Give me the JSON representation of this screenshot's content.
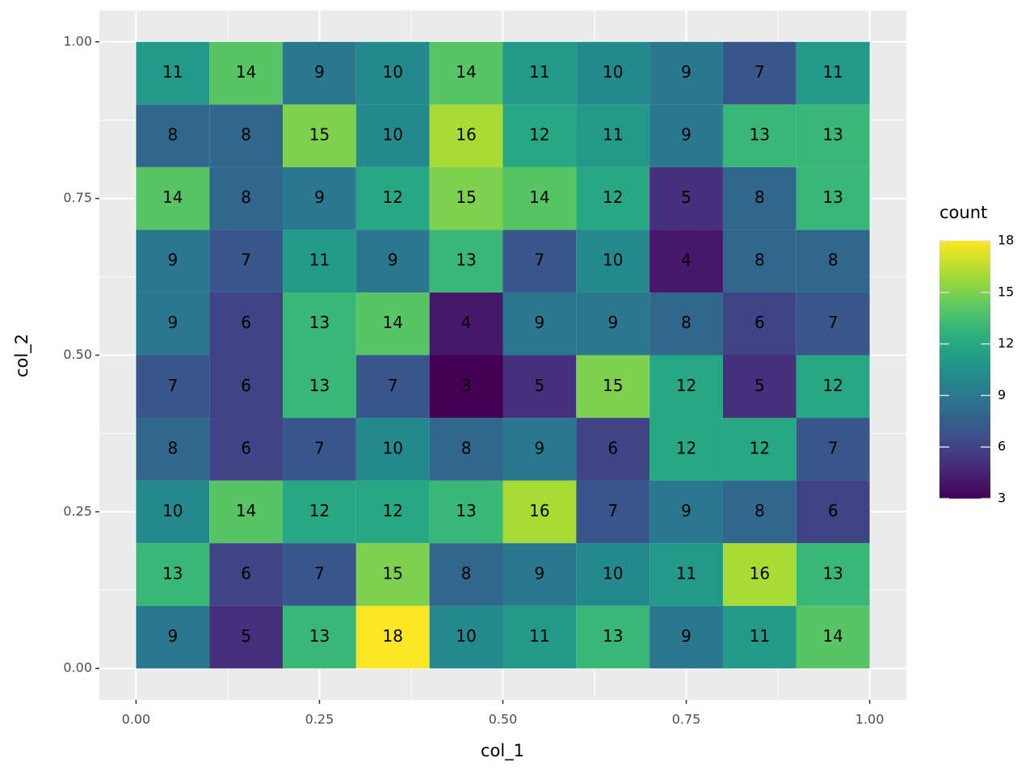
{
  "chart_data": {
    "type": "heatmap",
    "x_label": "col_1",
    "y_label": "col_2",
    "x_bins": [
      0,
      0.1,
      0.2,
      0.3,
      0.4,
      0.5,
      0.6,
      0.7,
      0.8,
      0.9,
      1.0
    ],
    "y_bins": [
      0,
      0.1,
      0.2,
      0.3,
      0.4,
      0.5,
      0.6,
      0.7,
      0.8,
      0.9,
      1.0
    ],
    "values": [
      [
        9,
        5,
        13,
        18,
        10,
        11,
        13,
        9,
        11,
        14
      ],
      [
        13,
        6,
        7,
        15,
        8,
        9,
        10,
        11,
        16,
        13
      ],
      [
        10,
        14,
        12,
        12,
        13,
        16,
        7,
        9,
        8,
        6
      ],
      [
        8,
        6,
        7,
        10,
        8,
        9,
        6,
        12,
        12,
        7
      ],
      [
        7,
        6,
        13,
        7,
        3,
        5,
        15,
        12,
        5,
        12
      ],
      [
        9,
        6,
        13,
        14,
        4,
        9,
        9,
        8,
        6,
        7
      ],
      [
        9,
        7,
        11,
        9,
        13,
        7,
        10,
        4,
        8,
        8
      ],
      [
        14,
        8,
        9,
        12,
        15,
        14,
        12,
        5,
        8,
        13
      ],
      [
        8,
        8,
        15,
        10,
        16,
        12,
        11,
        9,
        13,
        13
      ],
      [
        11,
        14,
        9,
        10,
        14,
        11,
        10,
        9,
        7,
        11
      ]
    ],
    "xlim": [
      -0.05,
      1.05
    ],
    "ylim": [
      -0.05,
      1.05
    ],
    "xticks": [
      {
        "value": 0,
        "label": "0.00"
      },
      {
        "value": 0.25,
        "label": "0.25"
      },
      {
        "value": 0.5,
        "label": "0.50"
      },
      {
        "value": 0.75,
        "label": "0.75"
      },
      {
        "value": 1,
        "label": "1.00"
      }
    ],
    "yticks": [
      {
        "value": 0,
        "label": "0.00"
      },
      {
        "value": 0.25,
        "label": "0.25"
      },
      {
        "value": 0.5,
        "label": "0.50"
      },
      {
        "value": 0.75,
        "label": "0.75"
      },
      {
        "value": 1,
        "label": "1.00"
      }
    ],
    "grid": true,
    "colormap": "viridis",
    "colorbar": {
      "title": "count",
      "lim": [
        3,
        18
      ],
      "ticks": [
        3,
        6,
        9,
        12,
        15,
        18
      ]
    }
  }
}
